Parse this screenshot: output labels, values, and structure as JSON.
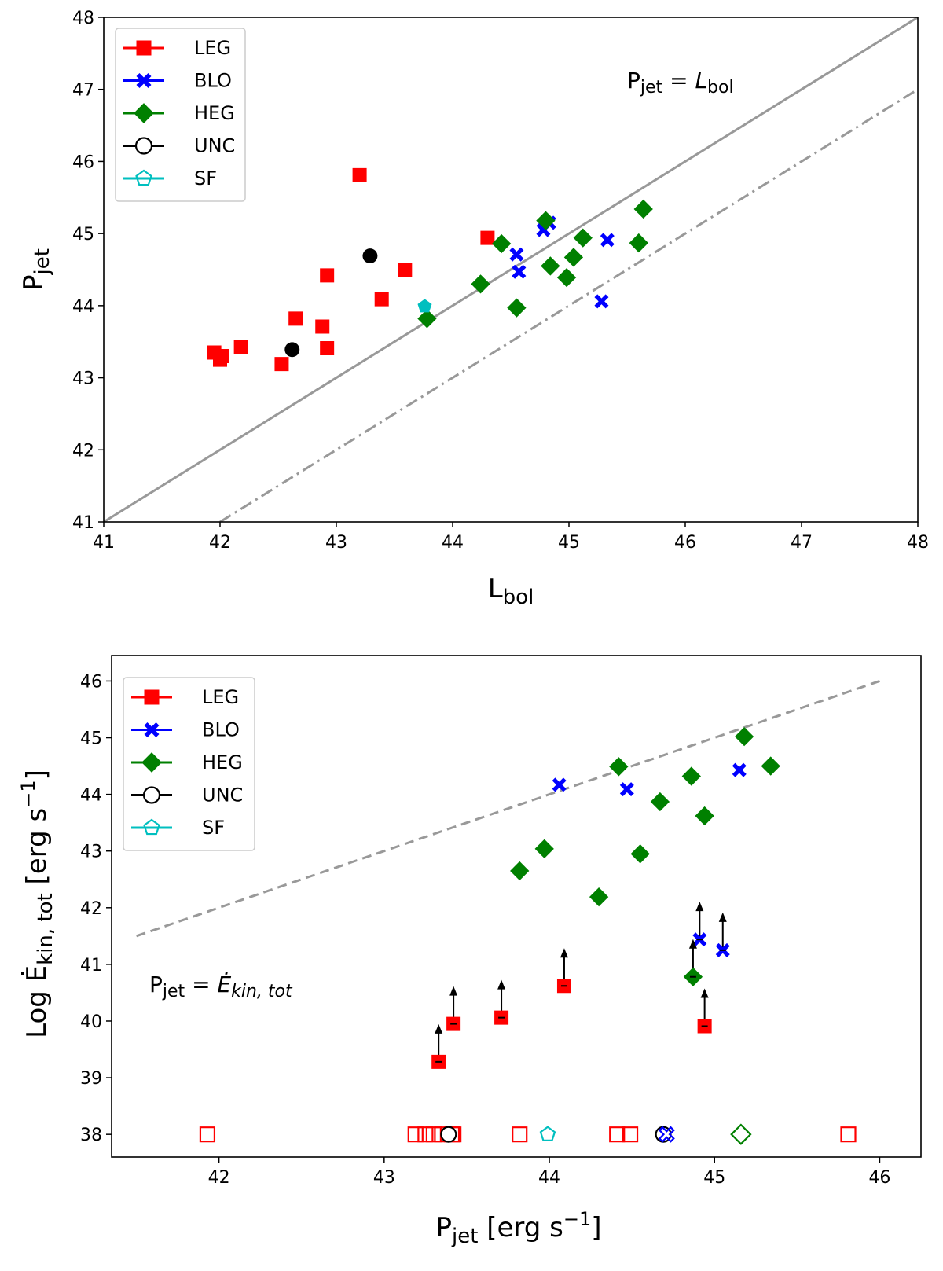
{
  "chart_data": [
    {
      "type": "scatter",
      "xlabel": {
        "main": "L",
        "sub": "bol"
      },
      "ylabel": {
        "main": "P",
        "sub": "jet"
      },
      "xlim": [
        41,
        48
      ],
      "ylim": [
        41,
        48
      ],
      "xticks": [
        "41",
        "42",
        "43",
        "44",
        "45",
        "46",
        "47",
        "48"
      ],
      "yticks": [
        "41",
        "42",
        "43",
        "44",
        "45",
        "46",
        "47",
        "48"
      ],
      "legend": {
        "position": "top-left",
        "entries": [
          {
            "label": "LEG",
            "marker": "square",
            "color": "#ff0000",
            "filled": true
          },
          {
            "label": "BLO",
            "marker": "x",
            "color": "#0000ff",
            "filled": true
          },
          {
            "label": "HEG",
            "marker": "diamond",
            "color": "#008000",
            "filled": true
          },
          {
            "label": "UNC",
            "marker": "circle",
            "color": "#000000",
            "filled": false
          },
          {
            "label": "SF",
            "marker": "pentagon",
            "color": "#00bfbf",
            "filled": false
          }
        ]
      },
      "annotation": {
        "main": "P",
        "sub": "jet",
        "eq": " = ",
        "rhs": "L",
        "rhs_sub": "bol"
      },
      "lines": [
        {
          "name": "equality",
          "style": "solid",
          "color": "#999999",
          "x": [
            41,
            48
          ],
          "y": [
            41,
            48
          ]
        },
        {
          "name": "offset",
          "style": "dashdot",
          "color": "#999999",
          "x": [
            42,
            48
          ],
          "y": [
            41,
            47
          ]
        }
      ],
      "series": [
        {
          "name": "LEG",
          "marker": "square",
          "color": "#ff0000",
          "filled": true,
          "points": [
            [
              41.95,
              43.35
            ],
            [
              42.0,
              43.25
            ],
            [
              42.02,
              43.3
            ],
            [
              42.18,
              43.42
            ],
            [
              42.53,
              43.19
            ],
            [
              42.65,
              43.82
            ],
            [
              42.88,
              43.71
            ],
            [
              42.92,
              44.42
            ],
            [
              42.92,
              43.41
            ],
            [
              43.2,
              45.81
            ],
            [
              43.39,
              44.09
            ],
            [
              43.59,
              44.49
            ],
            [
              44.3,
              44.94
            ]
          ]
        },
        {
          "name": "BLO",
          "marker": "x",
          "color": "#0000ff",
          "filled": true,
          "points": [
            [
              44.55,
              44.71
            ],
            [
              44.57,
              44.47
            ],
            [
              44.78,
              45.05
            ],
            [
              44.83,
              45.15
            ],
            [
              45.28,
              44.06
            ],
            [
              45.33,
              44.91
            ]
          ]
        },
        {
          "name": "HEG",
          "marker": "diamond",
          "color": "#008000",
          "filled": true,
          "points": [
            [
              43.78,
              43.82
            ],
            [
              44.24,
              44.3
            ],
            [
              44.42,
              44.86
            ],
            [
              44.55,
              43.97
            ],
            [
              44.8,
              45.18
            ],
            [
              44.84,
              44.55
            ],
            [
              44.98,
              44.39
            ],
            [
              45.04,
              44.67
            ],
            [
              45.12,
              44.94
            ],
            [
              45.6,
              44.87
            ],
            [
              45.64,
              45.34
            ]
          ]
        },
        {
          "name": "UNC",
          "marker": "circle",
          "color": "#000000",
          "filled": true,
          "points": [
            [
              42.62,
              43.39
            ],
            [
              43.29,
              44.69
            ]
          ]
        },
        {
          "name": "SF",
          "marker": "pentagon",
          "color": "#00bfbf",
          "filled": true,
          "points": [
            [
              43.76,
              43.99
            ]
          ]
        }
      ]
    },
    {
      "type": "scatter",
      "xlabel": {
        "main": "P",
        "sub": "jet",
        "unit": " [erg s",
        "sup": "−1",
        "close": "]"
      },
      "ylabel": {
        "main": "Log Ė",
        "sub": "kin, tot",
        "unit": " [erg s",
        "sup": "−1",
        "close": "]"
      },
      "xlim": [
        41.35,
        46.25
      ],
      "ylim": [
        37.6,
        46.45
      ],
      "xticks": [
        "42",
        "43",
        "44",
        "45",
        "46"
      ],
      "yticks": [
        "38",
        "39",
        "40",
        "41",
        "42",
        "43",
        "44",
        "45",
        "46"
      ],
      "legend": {
        "position": "top-left",
        "entries": [
          {
            "label": "LEG",
            "marker": "square",
            "color": "#ff0000",
            "filled": true
          },
          {
            "label": "BLO",
            "marker": "x",
            "color": "#0000ff",
            "filled": true
          },
          {
            "label": "HEG",
            "marker": "diamond",
            "color": "#008000",
            "filled": true
          },
          {
            "label": "UNC",
            "marker": "circle",
            "color": "#000000",
            "filled": false
          },
          {
            "label": "SF",
            "marker": "pentagon",
            "color": "#00bfbf",
            "filled": false
          }
        ]
      },
      "annotation": {
        "main": "P",
        "sub": "jet",
        "eq": " = ",
        "rhs": "Ė",
        "rhs_sub": "kin, tot"
      },
      "lines": [
        {
          "name": "relation",
          "style": "dashed",
          "color": "#999999",
          "x": [
            41.5,
            46.0
          ],
          "y": [
            41.5,
            46.0
          ]
        }
      ],
      "series": [
        {
          "name": "HEG",
          "marker": "diamond",
          "color": "#008000",
          "filled": true,
          "points": [
            [
              43.82,
              42.65
            ],
            [
              43.97,
              43.04
            ],
            [
              44.3,
              42.19
            ],
            [
              44.42,
              44.49
            ],
            [
              44.55,
              42.95
            ],
            [
              44.67,
              43.87
            ],
            [
              44.86,
              44.32
            ],
            [
              44.94,
              43.62
            ],
            [
              45.18,
              45.02
            ],
            [
              45.34,
              44.5
            ]
          ]
        },
        {
          "name": "BLO",
          "marker": "x",
          "color": "#0000ff",
          "filled": true,
          "points": [
            [
              44.06,
              44.17
            ],
            [
              44.47,
              44.09
            ],
            [
              45.15,
              44.43
            ]
          ]
        },
        {
          "name": "LEG lower limits",
          "marker": "square",
          "color": "#ff0000",
          "filled": true,
          "limit": "lower",
          "points": [
            [
              43.33,
              39.28
            ],
            [
              43.42,
              39.95
            ],
            [
              43.71,
              40.06
            ],
            [
              44.09,
              40.62
            ],
            [
              44.94,
              39.91
            ]
          ]
        },
        {
          "name": "BLO lower limits",
          "marker": "x",
          "color": "#0000ff",
          "filled": true,
          "limit": "lower",
          "points": [
            [
              44.91,
              41.44
            ],
            [
              45.05,
              41.25
            ]
          ]
        },
        {
          "name": "HEG lower limits",
          "marker": "diamond",
          "color": "#008000",
          "filled": true,
          "limit": "lower",
          "points": [
            [
              44.87,
              40.78
            ]
          ]
        },
        {
          "name": "LEG undetected",
          "marker": "square",
          "color": "#ff0000",
          "filled": false,
          "points": [
            [
              41.93,
              38
            ],
            [
              43.19,
              38
            ],
            [
              43.25,
              38
            ],
            [
              43.3,
              38
            ],
            [
              43.35,
              38
            ],
            [
              43.41,
              38
            ],
            [
              43.42,
              38
            ],
            [
              43.82,
              38
            ],
            [
              44.41,
              38
            ],
            [
              44.49,
              38
            ],
            [
              45.81,
              38
            ]
          ]
        },
        {
          "name": "UNC undetected",
          "marker": "circle",
          "color": "#000000",
          "filled": false,
          "points": [
            [
              43.39,
              38
            ],
            [
              44.69,
              38
            ]
          ]
        },
        {
          "name": "SF undetected",
          "marker": "pentagon",
          "color": "#00bfbf",
          "filled": false,
          "points": [
            [
              43.99,
              38
            ]
          ]
        },
        {
          "name": "BLO undetected",
          "marker": "x",
          "color": "#0000ff",
          "filled": false,
          "points": [
            [
              44.71,
              38
            ]
          ]
        },
        {
          "name": "HEG undetected",
          "marker": "diamond",
          "color": "#008000",
          "filled": false,
          "points": [
            [
              45.16,
              38
            ]
          ]
        }
      ]
    }
  ]
}
